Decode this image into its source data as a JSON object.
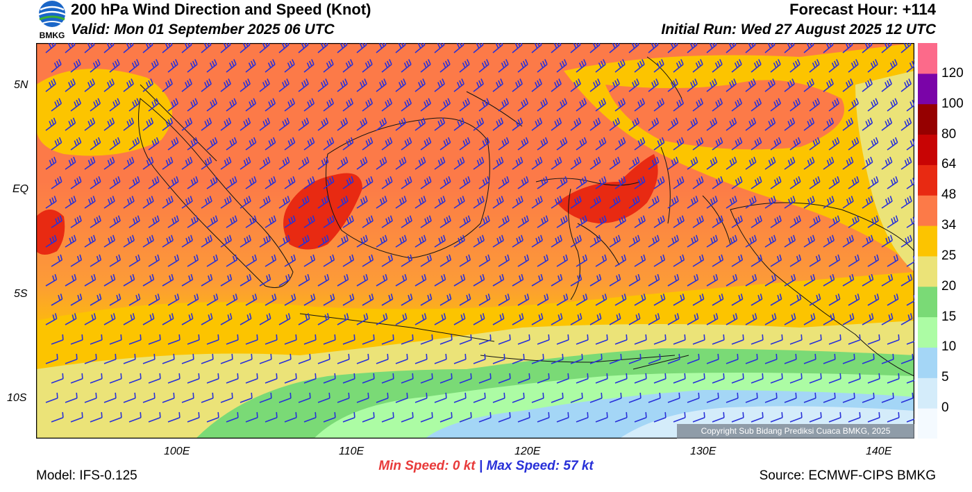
{
  "header": {
    "title": "200 hPa Wind Direction and Speed (Knot)",
    "valid": "Valid: Mon 01 September 2025 06 UTC",
    "forecast_hour": "Forecast Hour: +114",
    "initial_run": "Initial Run: Wed 27 August 2025 12 UTC",
    "logo_text": "BMKG"
  },
  "axes": {
    "lat_labels": [
      "5N",
      "EQ",
      "5S",
      "10S"
    ],
    "lon_labels": [
      "100E",
      "110E",
      "120E",
      "130E",
      "140E"
    ]
  },
  "colorbar": {
    "labels": [
      "0",
      "5",
      "10",
      "15",
      "20",
      "25",
      "34",
      "48",
      "64",
      "80",
      "100",
      "120"
    ],
    "colors": [
      "#f4faff",
      "#d4ecfa",
      "#a4d6f6",
      "#acfca4",
      "#7ada76",
      "#ebe378",
      "#fcc400",
      "#fc7a48",
      "#e82a12",
      "#c80404",
      "#960000",
      "#7a04a8",
      "#fc6a8a"
    ]
  },
  "stats": {
    "min_label": "Min Speed:",
    "min_value": "0 kt",
    "separator": "|",
    "max_label": "Max Speed:",
    "max_value": "57 kt"
  },
  "footer": {
    "model": "Model: IFS-0.125",
    "source": "Source: ECMWF-CIPS BMKG",
    "copyright": "Copyright Sub Bidang Prediksi Cuaca BMKG, 2025"
  }
}
